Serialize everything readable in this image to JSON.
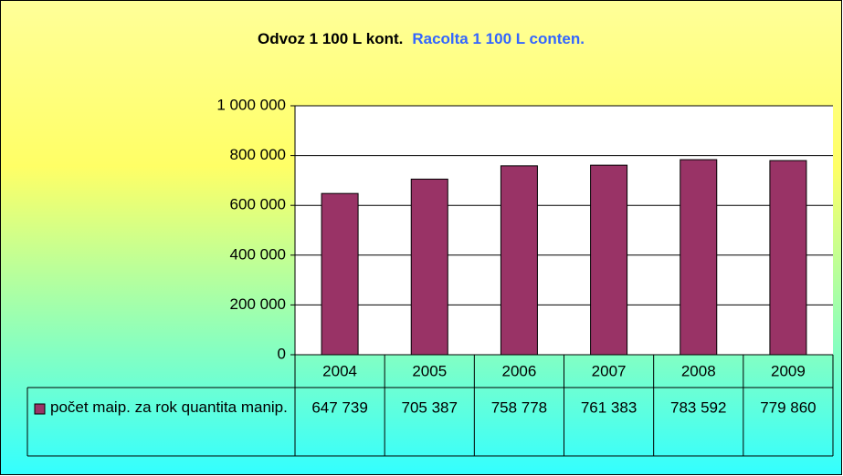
{
  "chart_data": {
    "type": "bar",
    "title": "Odvoz 1 100 L kont.",
    "subtitle": "Racolta 1 100 L conten.",
    "categories": [
      "2004",
      "2005",
      "2006",
      "2007",
      "2008",
      "2009"
    ],
    "series": [
      {
        "name": "počet maip. za rok quantita manip.",
        "color": "#993366",
        "values": [
          647739,
          705387,
          758778,
          761383,
          783592,
          779860
        ],
        "value_labels": [
          "647 739",
          "705 387",
          "758 778",
          "761 383",
          "783 592",
          "779 860"
        ]
      }
    ],
    "ylim": [
      0,
      1000000
    ],
    "yticks": [
      0,
      {
        "value": 200000,
        "label": "200 000"
      },
      {
        "value": 400000,
        "label": "400 000"
      },
      {
        "value": 600000,
        "label": "600 000"
      },
      {
        "value": 800000,
        "label": "800 000"
      },
      {
        "value": 1000000,
        "label": "1 000 000"
      }
    ],
    "grid": true,
    "data_table": true
  }
}
